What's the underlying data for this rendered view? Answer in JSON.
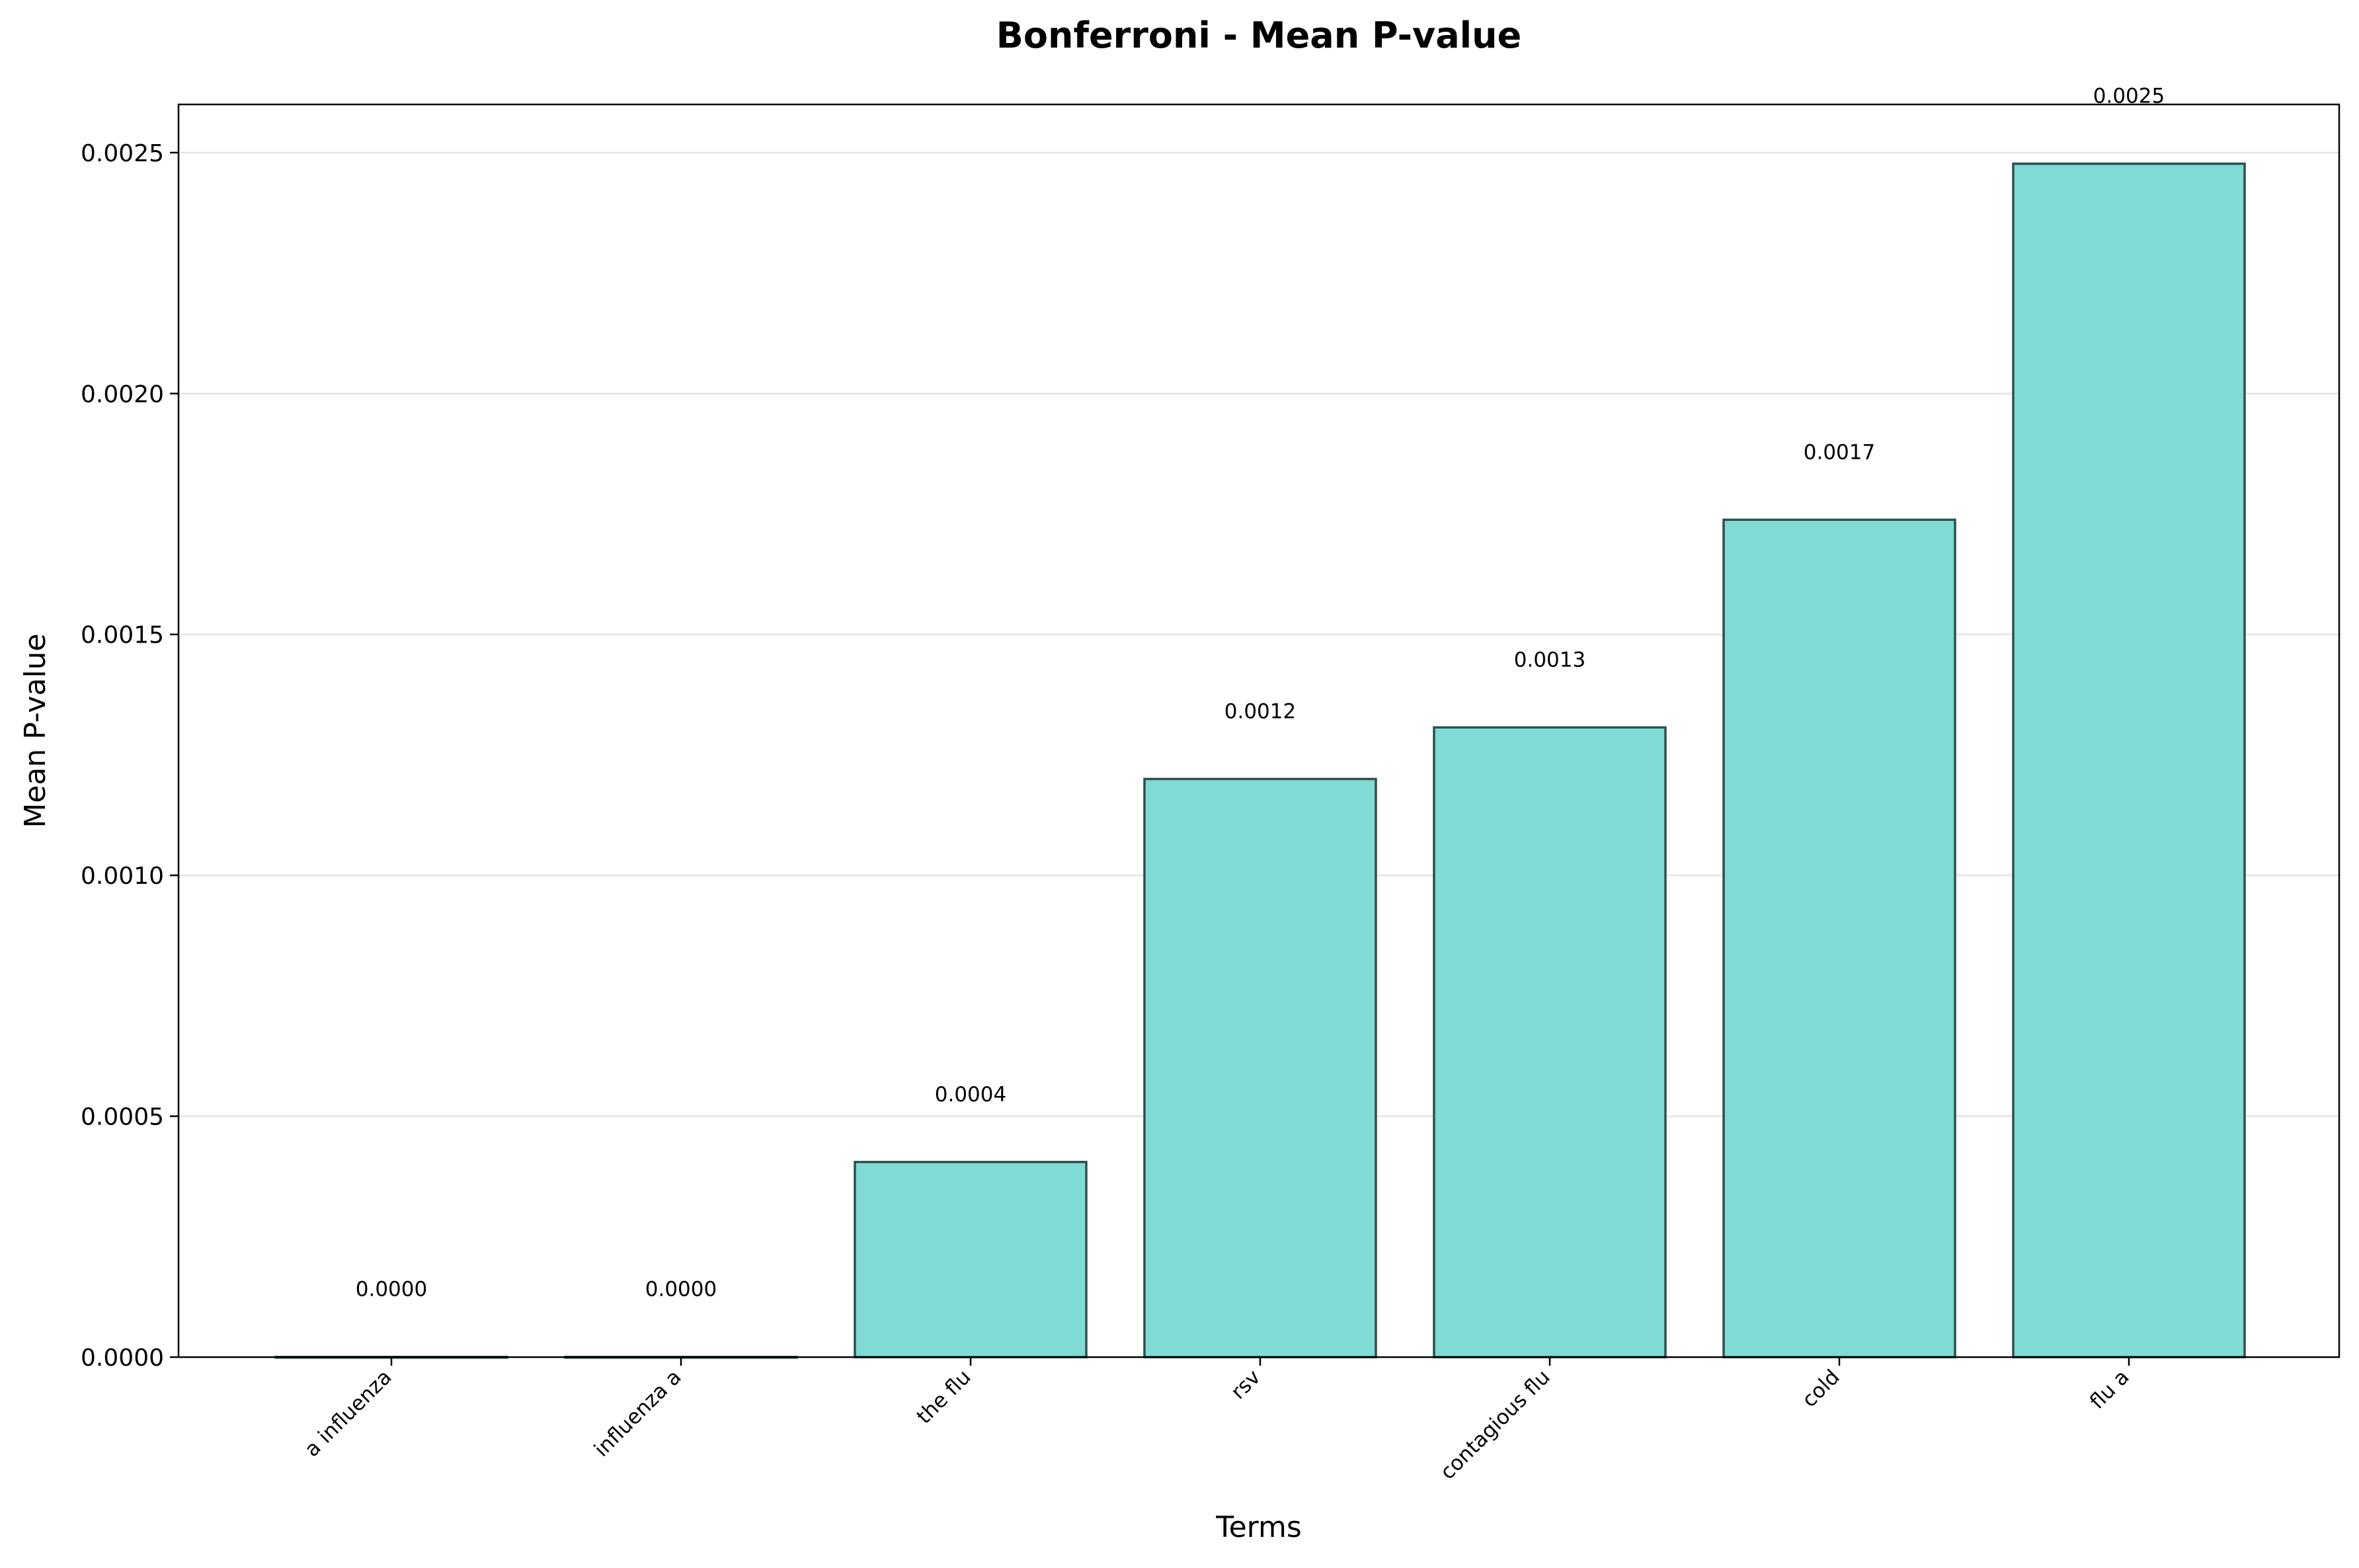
{
  "chart_data": {
    "type": "bar",
    "title": "Bonferroni - Mean P-value",
    "xlabel": "Terms",
    "ylabel": "Mean P-value",
    "categories": [
      "a influenza",
      "influenza a",
      "the flu",
      "rsv",
      "contagious flu",
      "cold",
      "flu a"
    ],
    "values": [
      4e-07,
      4e-07,
      0.000405,
      0.0012,
      0.001307,
      0.001738,
      0.002477
    ],
    "data_labels": [
      "0.0000",
      "0.0000",
      "0.0004",
      "0.0012",
      "0.0013",
      "0.0017",
      "0.0025"
    ],
    "ylim": [
      0,
      0.0026
    ],
    "yticks": [
      0,
      0.0005,
      0.001,
      0.0015,
      0.002,
      0.0025
    ],
    "ytick_labels": [
      "0.0000",
      "0.0005",
      "0.0010",
      "0.0015",
      "0.0020",
      "0.0025"
    ],
    "grid": "y-axis, light gray",
    "legend": "none",
    "bar_color": "#7fdbd3",
    "bar_edge_color": "#2f4f4f"
  }
}
